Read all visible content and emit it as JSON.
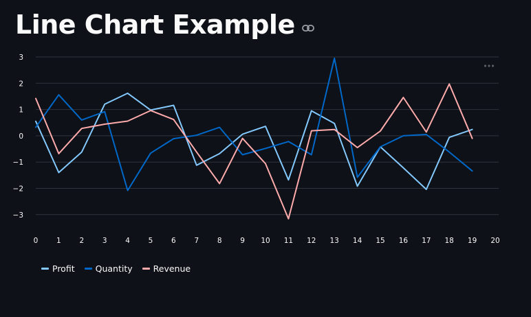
{
  "page": {
    "title": "Line Chart Example",
    "link_icon": "link-icon",
    "more_icon": "more-horizontal-icon"
  },
  "colors": {
    "background": "#0e1117",
    "grid": "#31333f",
    "text": "#fafafa",
    "Profit": "#83c9ff",
    "Quantity": "#0068c9",
    "Revenue": "#ffabab"
  },
  "chart_data": {
    "type": "line",
    "x": [
      0,
      1,
      2,
      3,
      4,
      5,
      6,
      7,
      8,
      9,
      10,
      11,
      12,
      13,
      14,
      15,
      16,
      17,
      18,
      19
    ],
    "xlim": [
      0,
      20
    ],
    "xticks": [
      0,
      1,
      2,
      3,
      4,
      5,
      6,
      7,
      8,
      9,
      10,
      11,
      12,
      13,
      14,
      15,
      16,
      17,
      18,
      19,
      20
    ],
    "ylim": [
      -3.7,
      3.0
    ],
    "yticks": [
      3,
      2,
      1,
      0,
      -1,
      -2,
      -3
    ],
    "ytick_labels": [
      "3",
      "2",
      "1",
      "0",
      "−1",
      "−2",
      "−3"
    ],
    "grid": true,
    "legend_position": "bottom-left",
    "series": [
      {
        "name": "Profit",
        "values": [
          0.55,
          -1.4,
          -0.62,
          1.2,
          1.62,
          0.98,
          1.16,
          -1.12,
          -0.68,
          0.06,
          0.36,
          -1.68,
          0.95,
          0.47,
          -1.92,
          -0.42,
          -1.22,
          -2.04,
          -0.06,
          0.24
        ]
      },
      {
        "name": "Quantity",
        "values": [
          0.32,
          1.56,
          0.6,
          0.92,
          -2.08,
          -0.66,
          -0.11,
          0.02,
          0.32,
          -0.72,
          -0.48,
          -0.22,
          -0.72,
          2.95,
          -1.58,
          -0.42,
          0.0,
          0.05,
          -0.62,
          -1.34
        ]
      },
      {
        "name": "Revenue",
        "values": [
          1.42,
          -0.68,
          0.28,
          0.44,
          0.56,
          0.96,
          0.62,
          -0.62,
          -1.82,
          -0.1,
          -1.06,
          -3.16,
          0.19,
          0.24,
          -0.45,
          0.18,
          1.46,
          0.14,
          1.97,
          -0.1
        ]
      }
    ]
  }
}
